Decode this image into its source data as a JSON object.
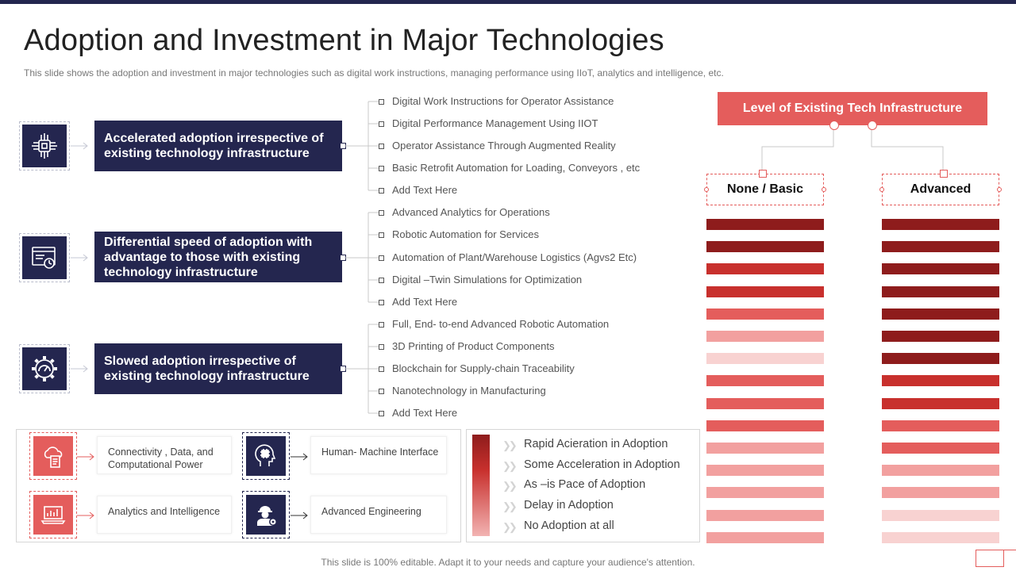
{
  "title": "Adoption and Investment in Major Technologies",
  "subtitle": "This slide shows the adoption and investment in major technologies such as digital work instructions, managing performance using IIoT, analytics and intelligence, etc.",
  "categories": [
    {
      "label": "Accelerated adoption irrespective of existing technology infrastructure",
      "icon": "chip-icon",
      "items": [
        "Digital Work Instructions for Operator Assistance",
        "Digital Performance Management Using IIOT",
        "Operator Assistance Through  Augmented Reality",
        "Basic Retrofit  Automation for Loading,  Conveyors   , etc",
        "Add Text Here"
      ]
    },
    {
      "label": "Differential speed of adoption with advantage to those with existing technology infrastructure",
      "icon": "browser-timer-icon",
      "items": [
        "Advanced Analytics for Operations",
        "Robotic Automation for Services",
        "Automation of Plant/Warehouse Logistics (Agvs2 Etc)",
        "Digital –Twin Simulations for Optimization",
        "Add Text Here"
      ]
    },
    {
      "label": "Slowed adoption irrespective of existing technology infrastructure",
      "icon": "gear-gauge-icon",
      "items": [
        "Full, End- to-end Advanced Robotic Automation",
        "3D Printing of Product Components",
        "Blockchain for Supply-chain Traceability",
        "Nanotechnology  in Manufacturing",
        "Add Text Here"
      ]
    }
  ],
  "level_header": "Level of Existing Tech Infrastructure",
  "columns": [
    "None / Basic",
    "Advanced"
  ],
  "levels": {
    "none_basic": [
      0,
      0,
      1,
      1,
      2,
      3,
      4,
      2,
      2,
      2,
      3,
      3,
      3,
      3,
      3
    ],
    "advanced": [
      0,
      0,
      0,
      0,
      0,
      0,
      0,
      1,
      1,
      2,
      2,
      3,
      3,
      4,
      4
    ]
  },
  "legend": [
    "Rapid  Acieration in Adoption",
    "Some Acceleration in Adoption",
    "As –is Pace of Adoption",
    "Delay in Adoption",
    "No Adoption at all"
  ],
  "colors": {
    "navy": "#24264f",
    "accent": "#e45d5c",
    "level_colors": [
      "#8e1c1c",
      "#c8302d",
      "#e45d5c",
      "#f2a09f",
      "#f8d2d1"
    ]
  },
  "technologies": [
    {
      "label": "Connectivity  , Data,  and Computational Power",
      "icon": "cloud-document-icon"
    },
    {
      "label": "Human- Machine Interface",
      "icon": "head-chip-icon"
    },
    {
      "label": "Analytics and Intelligence",
      "icon": "laptop-chart-icon"
    },
    {
      "label": "Advanced Engineering",
      "icon": "engineer-gear-icon"
    }
  ],
  "footer": "This slide is 100% editable. Adapt it to your needs and capture your audience's attention."
}
